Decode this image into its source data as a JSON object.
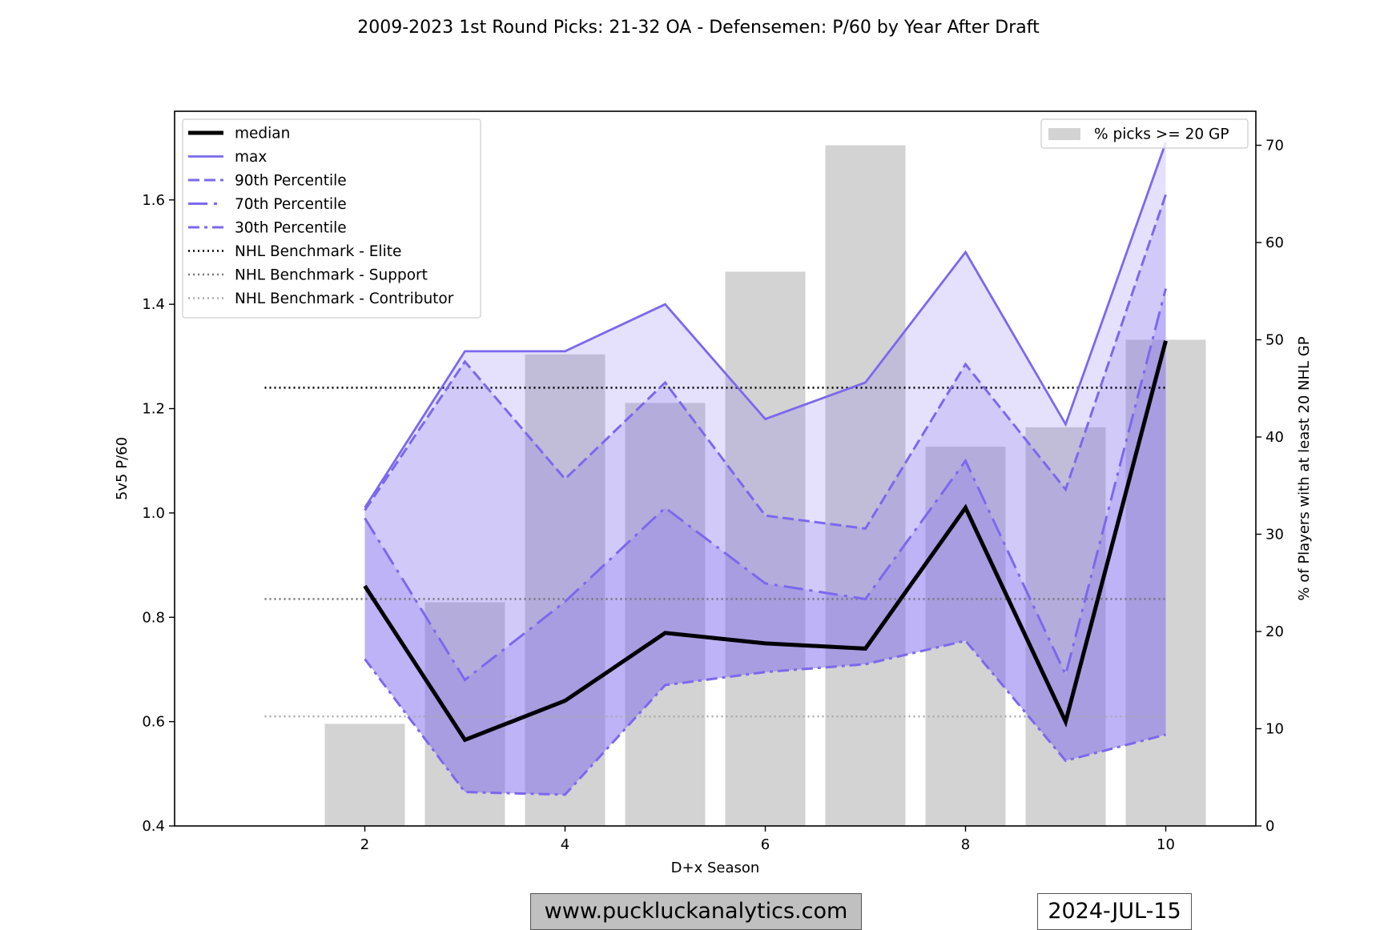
{
  "chart_data": {
    "type": "line",
    "title": "2009-2023 1st Round Picks: 21-32 OA - Defensemen: P/60 by Year After Draft",
    "xlabel": "D+x Season",
    "ylabel": "5v5 P/60",
    "y2label": "% of Players with at least 20 NHL GP",
    "xlim": [
      0.1,
      10.9
    ],
    "ylim": [
      0.4,
      1.77
    ],
    "y2lim": [
      0,
      73.5
    ],
    "xticks": [
      2,
      4,
      6,
      8,
      10
    ],
    "yticks": [
      0.4,
      0.6,
      0.8,
      1.0,
      1.2,
      1.4,
      1.6
    ],
    "yticks_labels": [
      "0.4",
      "0.6",
      "0.8",
      "1.0",
      "1.2",
      "1.4",
      "1.6"
    ],
    "y2ticks": [
      0,
      10,
      20,
      30,
      40,
      50,
      60,
      70
    ],
    "x": [
      2,
      3,
      4,
      5,
      6,
      7,
      8,
      9,
      10
    ],
    "series": [
      {
        "name": "median",
        "style": "solid-thick",
        "color": "#000000",
        "values": [
          0.86,
          0.565,
          0.64,
          0.77,
          0.75,
          0.74,
          1.01,
          0.6,
          1.33
        ]
      },
      {
        "name": "max",
        "style": "solid",
        "color": "#7b68ee",
        "values": [
          1.01,
          1.31,
          1.31,
          1.4,
          1.18,
          1.25,
          1.5,
          1.17,
          1.71
        ]
      },
      {
        "name": "90th Percentile",
        "style": "dashed",
        "color": "#7b68ee",
        "values": [
          1.005,
          1.29,
          1.065,
          1.25,
          0.995,
          0.97,
          1.285,
          1.045,
          1.61
        ]
      },
      {
        "name": "70th Percentile",
        "style": "dashdot-long",
        "color": "#7b68ee",
        "values": [
          0.99,
          0.68,
          0.83,
          1.01,
          0.865,
          0.835,
          1.1,
          0.69,
          1.43
        ]
      },
      {
        "name": "30th Percentile",
        "style": "dashdot",
        "color": "#7b68ee",
        "values": [
          0.72,
          0.465,
          0.46,
          0.67,
          0.695,
          0.71,
          0.755,
          0.525,
          0.575
        ]
      }
    ],
    "benchmarks": [
      {
        "name": "NHL Benchmark - Elite",
        "value": 1.24,
        "color": "#000000"
      },
      {
        "name": "NHL Benchmark - Support",
        "value": 0.835,
        "color": "#777777"
      },
      {
        "name": "NHL Benchmark - Contributor",
        "value": 0.61,
        "color": "#aaaaaa"
      }
    ],
    "benchmark_x_range": [
      1,
      10
    ],
    "bars": {
      "name": "% picks >= 20 GP",
      "color": "#d3d3d3",
      "values": [
        10.5,
        23,
        48.5,
        43.5,
        57,
        70,
        39,
        41,
        50
      ]
    },
    "legend_left_placement": "upper-left",
    "legend_right_placement": "upper-right"
  },
  "footer": {
    "site": "www.puckluckanalytics.com",
    "date": "2024-JUL-15"
  }
}
